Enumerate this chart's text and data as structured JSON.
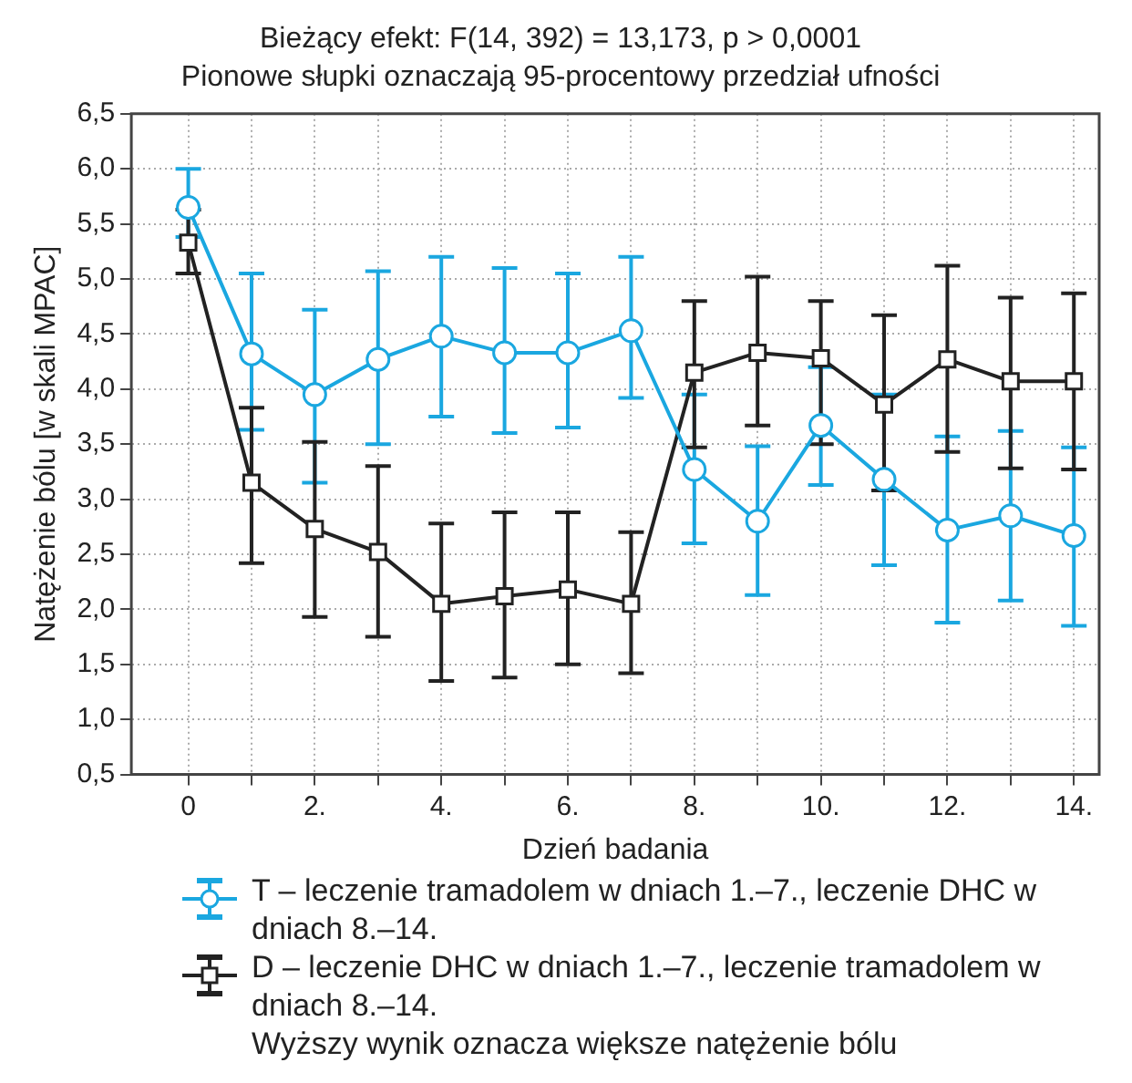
{
  "chart_data": {
    "type": "line",
    "title": "Bieżący efekt: F(14, 392) = 13,173, p > 0,0001",
    "subtitle": "Pionowe słupki oznaczają 95-procentowy przedział ufności",
    "xlabel": "Dzień badania",
    "ylabel": "Natężenie bólu [w skali MPAC]",
    "x": [
      0,
      1,
      2,
      3,
      4,
      5,
      6,
      7,
      8,
      9,
      10,
      11,
      12,
      13,
      14
    ],
    "series": [
      {
        "name": "T – leczenie tramadolem w dniach 1.–7., leczenie DHC w dniach 8.–14.",
        "color": "#1aa7e0",
        "marker": "circle",
        "values": [
          5.65,
          4.32,
          3.95,
          4.27,
          4.48,
          4.33,
          4.33,
          4.53,
          3.27,
          2.8,
          3.67,
          3.18,
          2.72,
          2.85,
          2.67
        ],
        "errors": [
          [
            5.38,
            6.0
          ],
          [
            3.63,
            5.05
          ],
          [
            3.15,
            4.72
          ],
          [
            3.5,
            5.07
          ],
          [
            3.75,
            5.2
          ],
          [
            3.6,
            5.1
          ],
          [
            3.65,
            5.05
          ],
          [
            3.92,
            5.2
          ],
          [
            2.6,
            3.95
          ],
          [
            2.13,
            3.48
          ],
          [
            3.13,
            4.2
          ],
          [
            2.4,
            3.95
          ],
          [
            1.88,
            3.57
          ],
          [
            2.08,
            3.62
          ],
          [
            1.85,
            3.47
          ]
        ]
      },
      {
        "name": "D – leczenie DHC w dniach 1.–7., leczenie tramadolem w dniach 8.–14.",
        "color": "#222222",
        "marker": "square",
        "values": [
          5.33,
          3.15,
          2.73,
          2.52,
          2.05,
          2.12,
          2.18,
          2.05,
          4.15,
          4.33,
          4.28,
          3.86,
          4.27,
          4.07,
          4.07
        ],
        "errors": [
          [
            5.05,
            5.63
          ],
          [
            2.42,
            3.83
          ],
          [
            1.93,
            3.52
          ],
          [
            1.75,
            3.3
          ],
          [
            1.35,
            2.78
          ],
          [
            1.38,
            2.88
          ],
          [
            1.5,
            2.88
          ],
          [
            1.42,
            2.7
          ],
          [
            3.47,
            4.8
          ],
          [
            3.67,
            5.02
          ],
          [
            3.5,
            4.8
          ],
          [
            3.08,
            4.67
          ],
          [
            3.43,
            5.12
          ],
          [
            3.28,
            4.83
          ],
          [
            3.27,
            4.87
          ]
        ]
      }
    ],
    "xlim": [
      -0.9,
      14.4
    ],
    "xticks": [
      0,
      {
        "value": 1,
        "label": null
      },
      {
        "value": 2,
        "label": "2."
      },
      {
        "value": 3,
        "label": null
      },
      {
        "value": 4,
        "label": "4."
      },
      {
        "value": 5,
        "label": null
      },
      {
        "value": 6,
        "label": "6."
      },
      {
        "value": 7,
        "label": null
      },
      {
        "value": 8,
        "label": "8."
      },
      {
        "value": 9,
        "label": null
      },
      {
        "value": 10,
        "label": "10."
      },
      {
        "value": 11,
        "label": null
      },
      {
        "value": 12,
        "label": "12."
      },
      {
        "value": 13,
        "label": null
      },
      {
        "value": 14,
        "label": "14."
      }
    ],
    "ylim": [
      0.5,
      6.5
    ],
    "yticks": [
      {
        "value": 0.5,
        "label": "0,5"
      },
      {
        "value": 1,
        "label": "1,0"
      },
      {
        "value": 1.5,
        "label": "1,5"
      },
      {
        "value": 2,
        "label": "2,0"
      },
      {
        "value": 2.5,
        "label": "2,5"
      },
      {
        "value": 3,
        "label": "3,0"
      },
      {
        "value": 3.5,
        "label": "3,5"
      },
      {
        "value": 4,
        "label": "4,0"
      },
      {
        "value": 4.5,
        "label": "4,5"
      },
      {
        "value": 5,
        "label": "5,0"
      },
      {
        "value": 5.5,
        "label": "5,5"
      },
      {
        "value": 6,
        "label": "6,0"
      },
      {
        "value": 6.5,
        "label": "6,5"
      }
    ],
    "grid": true,
    "legend": "bottom",
    "line_style": "solid",
    "annotations": [
      "Wyższy wynik oznacza większe natężenie bólu"
    ]
  }
}
